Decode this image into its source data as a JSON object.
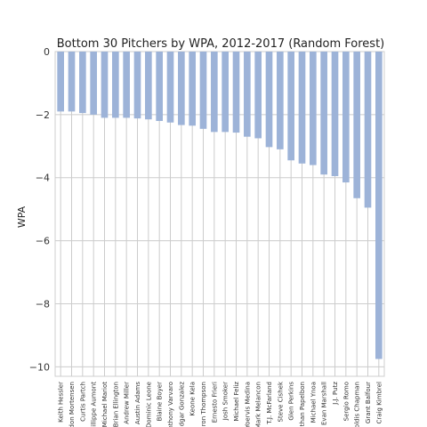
{
  "chart_data": {
    "type": "bar",
    "title": "Bottom 30 Pitchers by WPA, 2012-2017 (Random Forest)",
    "xlabel": "",
    "ylabel": "WPA",
    "ylim": [
      -10.3,
      0
    ],
    "yticks": [
      "0",
      "−2",
      "−4",
      "−6",
      "−8",
      "−10"
    ],
    "ytick_values": [
      0,
      -2,
      -4,
      -6,
      -8,
      -10
    ],
    "grid": true,
    "bar_color": "#9db3d8",
    "categories": [
      "Keith Hessler",
      "don Mortensen",
      "Curtis Partch",
      "hillippe Aumont",
      "Michael Mariot",
      "Brian Ellington",
      "Andrew Miller",
      "Austin Adams",
      "Dominic Leone",
      "Blaine Boyer",
      "nthony Varvaro",
      "dgar Gonzalez",
      "Keone Kela",
      "aron Thompson",
      "Ernesto Frieri",
      "Josh Smoker",
      "Michael Feliz",
      "Yoervis Medina",
      "Mark Melancon",
      "T.J. McFarland",
      "Steve Cishek",
      "Glen Perkins",
      "than Papelbon",
      "Michael Ynoa",
      "Evan Marshall",
      "J.J. Putz",
      "Sergio Romo",
      "oldis Chapman",
      "Grant Balfour",
      "Craig Kimbrel"
    ],
    "values": [
      -1.9,
      -1.9,
      -1.95,
      -2.0,
      -2.1,
      -2.1,
      -2.1,
      -2.12,
      -2.15,
      -2.2,
      -2.25,
      -2.33,
      -2.35,
      -2.45,
      -2.55,
      -2.55,
      -2.57,
      -2.7,
      -2.75,
      -3.03,
      -3.1,
      -3.45,
      -3.55,
      -3.6,
      -3.9,
      -3.95,
      -4.15,
      -4.65,
      -4.95,
      -9.75
    ]
  }
}
